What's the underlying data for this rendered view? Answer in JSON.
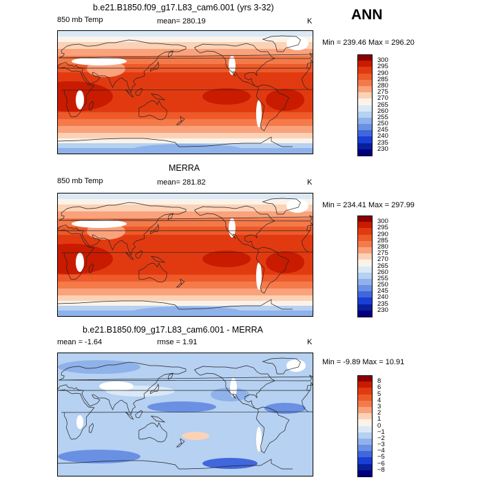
{
  "season_label": "ANN",
  "panels": [
    {
      "title": "b.e21.B1850.f09_g17.L83_cam6.001 (yrs 3-32)",
      "left_label": "850 mb Temp",
      "center_label": "mean= 280.19",
      "right_label": "K",
      "minmax": "Min = 239.46 Max = 296.20",
      "palette": "abs",
      "colorbar": {
        "levels": [
          "300",
          "295",
          "290",
          "285",
          "280",
          "275",
          "270",
          "265",
          "260",
          "255",
          "250",
          "245",
          "240",
          "235",
          "230"
        ],
        "colors": [
          "#8b0000",
          "#c81b00",
          "#e23a10",
          "#ee5a2a",
          "#f57a4a",
          "#faa27c",
          "#fcd2b6",
          "#fbf3ea",
          "#dbe9f7",
          "#b6d1f1",
          "#8fb2ea",
          "#6a90e3",
          "#4167dc",
          "#1a3fd6",
          "#0a1f9e",
          "#000080"
        ]
      }
    },
    {
      "title": "MERRA",
      "left_label": "850 mb Temp",
      "center_label": "mean= 281.82",
      "right_label": "K",
      "minmax": "Min = 234.41 Max = 297.99",
      "palette": "abs",
      "colorbar": {
        "levels": [
          "300",
          "295",
          "290",
          "285",
          "280",
          "275",
          "270",
          "265",
          "260",
          "255",
          "250",
          "245",
          "240",
          "235",
          "230"
        ],
        "colors": [
          "#8b0000",
          "#c81b00",
          "#e23a10",
          "#ee5a2a",
          "#f57a4a",
          "#faa27c",
          "#fcd2b6",
          "#fbf3ea",
          "#dbe9f7",
          "#b6d1f1",
          "#8fb2ea",
          "#6a90e3",
          "#4167dc",
          "#1a3fd6",
          "#0a1f9e",
          "#000080"
        ]
      }
    },
    {
      "title": "b.e21.B1850.f09_g17.L83_cam6.001 - MERRA",
      "left_label": "mean =  -1.64",
      "center_label": "rmse =   1.91",
      "right_label": "K",
      "minmax": "Min =  -9.89 Max =  10.91",
      "palette": "diff",
      "colorbar": {
        "levels": [
          "8",
          "6",
          "5",
          "4",
          "3",
          "2",
          "1",
          "0",
          "−1",
          "−2",
          "−3",
          "−4",
          "−5",
          "−6",
          "−8"
        ],
        "colors": [
          "#8b0000",
          "#c81b00",
          "#e23a10",
          "#ee5a2a",
          "#f57a4a",
          "#faa27c",
          "#fcd2b6",
          "#fbf3ea",
          "#dbe9f7",
          "#b6d1f1",
          "#8fb2ea",
          "#6a90e3",
          "#4167dc",
          "#1a3fd6",
          "#0a1f9e",
          "#000080"
        ]
      }
    }
  ]
}
